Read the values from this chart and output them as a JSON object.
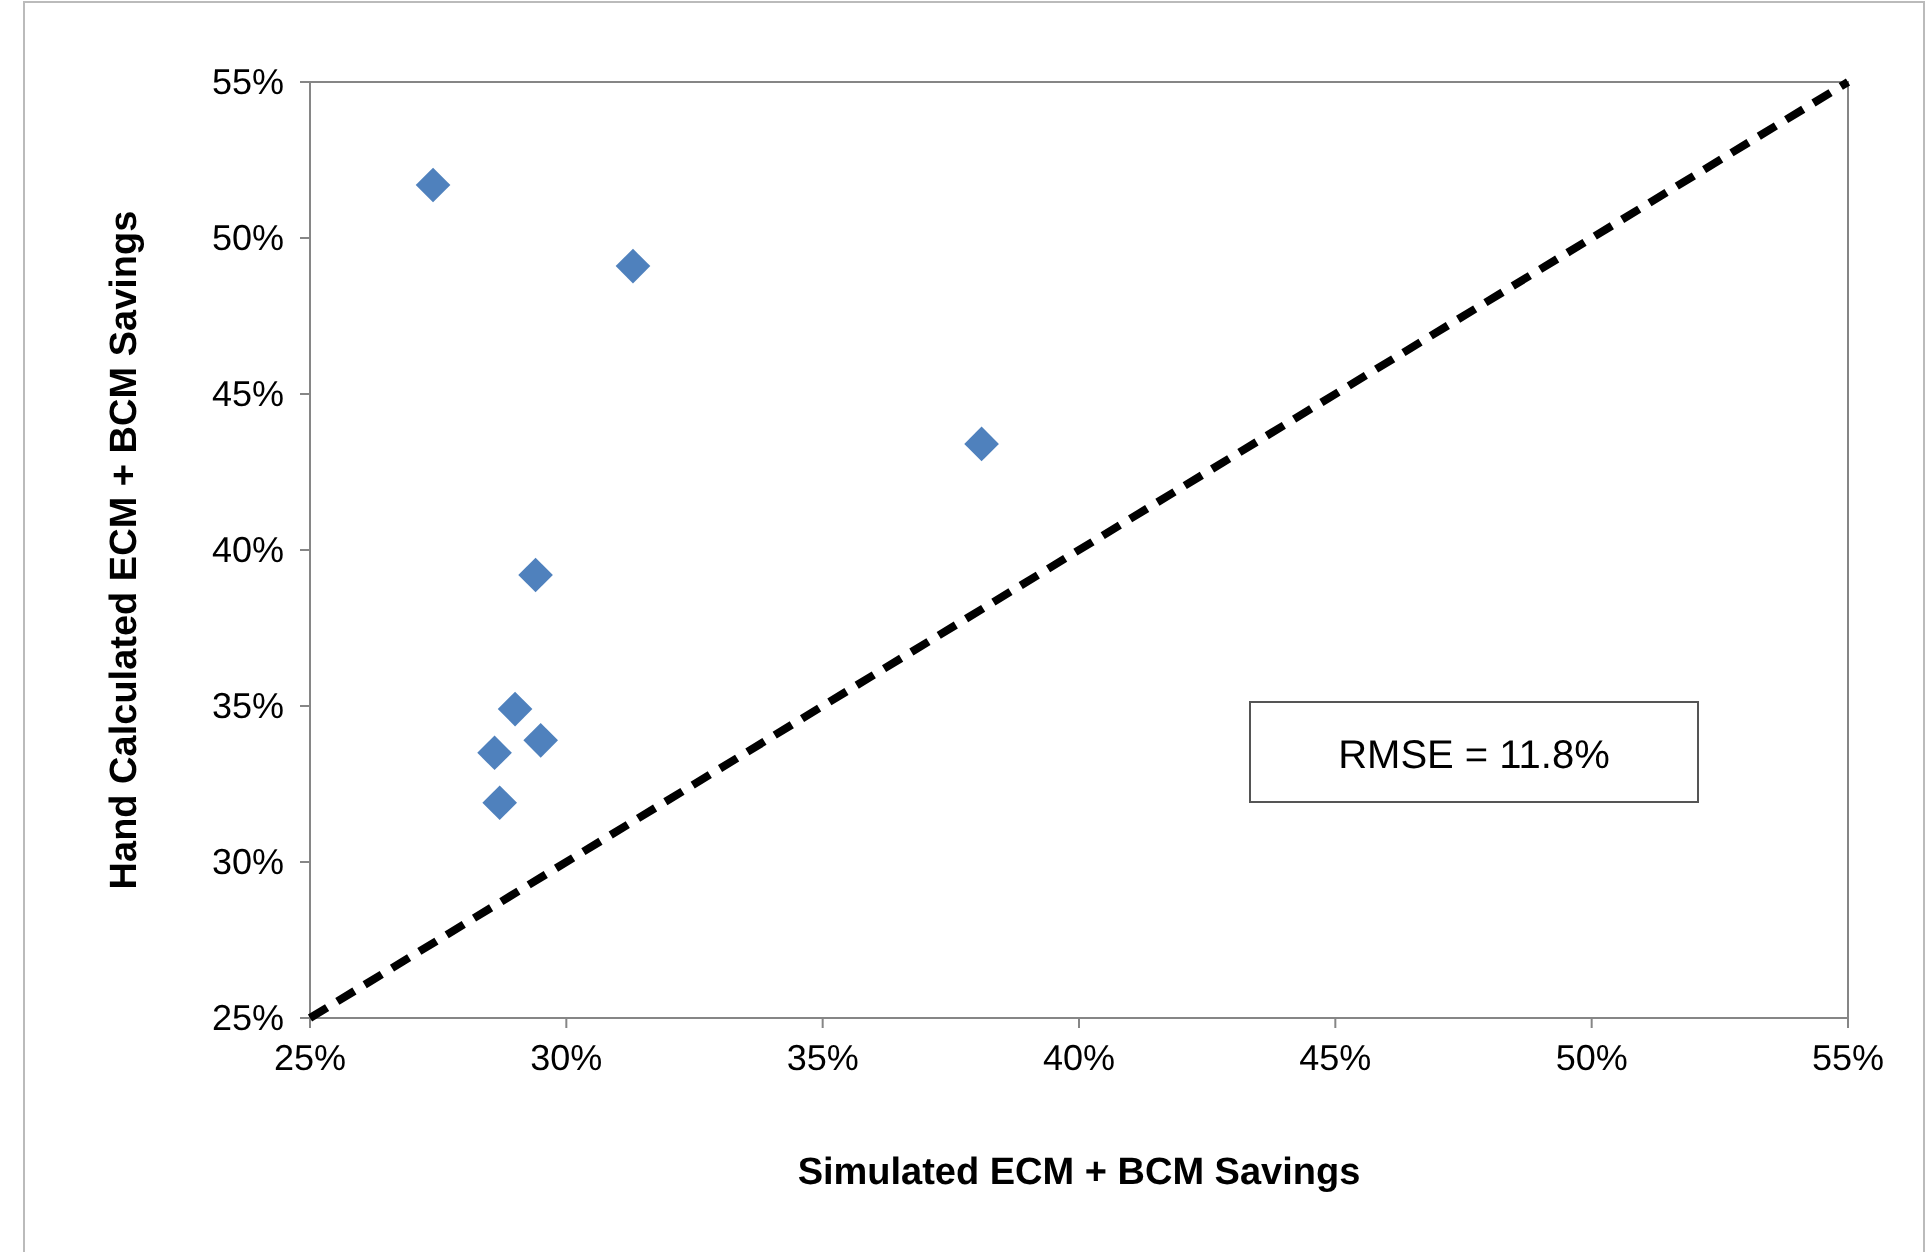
{
  "chart_data": {
    "type": "scatter",
    "xlabel": "Simulated ECM + BCM Savings",
    "ylabel": "Hand Calculated ECM + BCM Savings",
    "xlim": [
      25,
      55
    ],
    "ylim": [
      25,
      55
    ],
    "xticks": [
      {
        "value": 25,
        "label": "25%"
      },
      {
        "value": 30,
        "label": "30%"
      },
      {
        "value": 35,
        "label": "35%"
      },
      {
        "value": 40,
        "label": "40%"
      },
      {
        "value": 45,
        "label": "45%"
      },
      {
        "value": 50,
        "label": "50%"
      },
      {
        "value": 55,
        "label": "55%"
      }
    ],
    "yticks": [
      {
        "value": 25,
        "label": "25%"
      },
      {
        "value": 30,
        "label": "30%"
      },
      {
        "value": 35,
        "label": "35%"
      },
      {
        "value": 40,
        "label": "40%"
      },
      {
        "value": 45,
        "label": "45%"
      },
      {
        "value": 50,
        "label": "50%"
      },
      {
        "value": 55,
        "label": "55%"
      }
    ],
    "grid": false,
    "series": [
      {
        "color": "#4f81bd",
        "marker": "diamond",
        "x": [
          27.4,
          31.3,
          38.1,
          29.4,
          29.0,
          29.5,
          28.6,
          28.7
        ],
        "values": [
          51.7,
          49.1,
          43.4,
          39.2,
          34.9,
          33.9,
          33.5,
          31.9
        ]
      },
      {
        "type": "line",
        "color": "#000000",
        "line_style": "dashed",
        "x": [
          25,
          55
        ],
        "values": [
          25,
          55
        ]
      }
    ],
    "annotations": [
      "RMSE = 11.8%"
    ]
  }
}
